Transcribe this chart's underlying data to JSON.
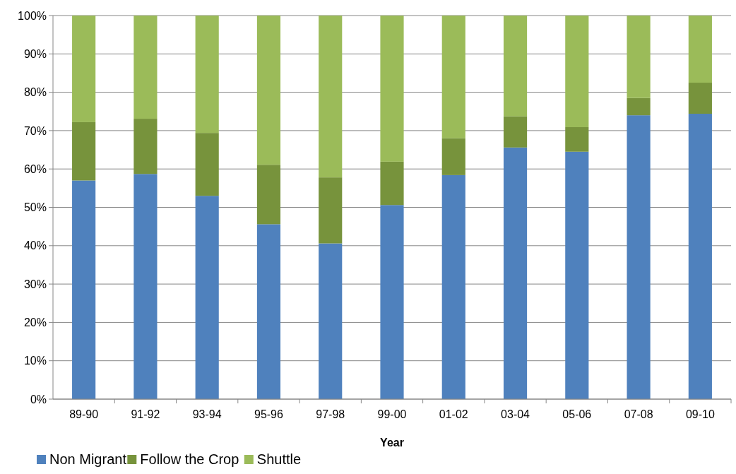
{
  "chart_data": {
    "type": "bar",
    "stacked": true,
    "xlabel": "Year",
    "categories": [
      "89-90",
      "91-92",
      "93-94",
      "95-96",
      "97-98",
      "99-00",
      "01-02",
      "03-04",
      "05-06",
      "07-08",
      "09-10"
    ],
    "series": [
      {
        "name": "Non Migrant",
        "color": "#4f81bd",
        "values": [
          57,
          58.7,
          53,
          45.6,
          40.6,
          50.6,
          58.4,
          65.6,
          64.5,
          74,
          74.4
        ]
      },
      {
        "name": "Follow the Crop",
        "color": "#77933c",
        "values": [
          15.2,
          14.4,
          16.4,
          15.5,
          17.2,
          11.3,
          9.6,
          8.1,
          6.4,
          4.5,
          8.1
        ]
      },
      {
        "name": "Shuttle",
        "color": "#9bbb59",
        "values": [
          27.8,
          26.9,
          30.6,
          38.9,
          42.2,
          38.1,
          32,
          26.3,
          29.1,
          21.5,
          17.5
        ]
      }
    ],
    "ylim": [
      0,
      100
    ],
    "yticks": [
      {
        "value": 0,
        "label": "0%"
      },
      {
        "value": 10,
        "label": "10%"
      },
      {
        "value": 20,
        "label": "20%"
      },
      {
        "value": 30,
        "label": "30%"
      },
      {
        "value": 40,
        "label": "40%"
      },
      {
        "value": 50,
        "label": "50%"
      },
      {
        "value": 60,
        "label": "60%"
      },
      {
        "value": 70,
        "label": "70%"
      },
      {
        "value": 80,
        "label": "80%"
      },
      {
        "value": 90,
        "label": "90%"
      },
      {
        "value": 100,
        "label": "100%"
      }
    ],
    "grid": "y",
    "legend": "bottom left"
  }
}
